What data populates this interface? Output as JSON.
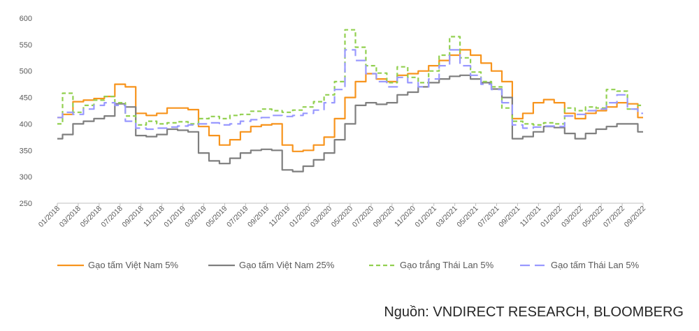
{
  "source_text": "Nguồn: VNDIRECT RESEARCH, BLOOMBERG",
  "chart_data": {
    "type": "line",
    "title": "",
    "xlabel": "",
    "ylabel": "",
    "ylim": [
      250,
      600
    ],
    "yticks": [
      250,
      300,
      350,
      400,
      450,
      500,
      550,
      600
    ],
    "grid": false,
    "legend_position": "bottom",
    "x_range": [
      "2018-01",
      "2022-09"
    ],
    "x_tick_labels": [
      "01/2018",
      "03/2018",
      "05/2018",
      "07/2018",
      "09/2018",
      "11/2018",
      "01/2019",
      "03/2019",
      "05/2019",
      "07/2019",
      "09/2019",
      "11/2019",
      "01/2020",
      "03/2020",
      "05/2020",
      "07/2020",
      "09/2020",
      "11/2020",
      "01/2021",
      "03/2021",
      "05/2021",
      "07/2021",
      "09/2021",
      "11/2021",
      "01/2022",
      "03/2022",
      "05/2022",
      "07/2022",
      "09/2022"
    ],
    "series": [
      {
        "name": "Gạo tấm Việt Nam 5%",
        "color": "#F7941D",
        "dash": "solid",
        "points": [
          [
            "2018-01",
            412
          ],
          [
            "2018-02",
            418
          ],
          [
            "2018-03",
            442
          ],
          [
            "2018-04",
            445
          ],
          [
            "2018-05",
            448
          ],
          [
            "2018-06",
            452
          ],
          [
            "2018-07",
            475
          ],
          [
            "2018-08",
            470
          ],
          [
            "2018-09",
            420
          ],
          [
            "2018-10",
            416
          ],
          [
            "2018-11",
            420
          ],
          [
            "2018-12",
            430
          ],
          [
            "2019-01",
            430
          ],
          [
            "2019-02",
            427
          ],
          [
            "2019-03",
            395
          ],
          [
            "2019-04",
            378
          ],
          [
            "2019-05",
            360
          ],
          [
            "2019-06",
            370
          ],
          [
            "2019-07",
            385
          ],
          [
            "2019-08",
            395
          ],
          [
            "2019-09",
            398
          ],
          [
            "2019-10",
            400
          ],
          [
            "2019-11",
            360
          ],
          [
            "2019-12",
            348
          ],
          [
            "2020-01",
            350
          ],
          [
            "2020-02",
            360
          ],
          [
            "2020-03",
            375
          ],
          [
            "2020-04",
            410
          ],
          [
            "2020-05",
            450
          ],
          [
            "2020-06",
            480
          ],
          [
            "2020-07",
            495
          ],
          [
            "2020-08",
            485
          ],
          [
            "2020-09",
            480
          ],
          [
            "2020-10",
            492
          ],
          [
            "2020-11",
            495
          ],
          [
            "2020-12",
            500
          ],
          [
            "2021-01",
            510
          ],
          [
            "2021-02",
            520
          ],
          [
            "2021-03",
            530
          ],
          [
            "2021-04",
            540
          ],
          [
            "2021-05",
            530
          ],
          [
            "2021-06",
            515
          ],
          [
            "2021-07",
            500
          ],
          [
            "2021-08",
            480
          ],
          [
            "2021-09",
            410
          ],
          [
            "2021-10",
            420
          ],
          [
            "2021-11",
            440
          ],
          [
            "2021-12",
            446
          ],
          [
            "2022-01",
            440
          ],
          [
            "2022-02",
            420
          ],
          [
            "2022-03",
            410
          ],
          [
            "2022-04",
            420
          ],
          [
            "2022-05",
            425
          ],
          [
            "2022-06",
            432
          ],
          [
            "2022-07",
            440
          ],
          [
            "2022-08",
            438
          ],
          [
            "2022-09",
            412
          ]
        ]
      },
      {
        "name": "Gạo tấm Việt Nam 25%",
        "color": "#7F7F7F",
        "dash": "solid",
        "points": [
          [
            "2018-01",
            372
          ],
          [
            "2018-02",
            380
          ],
          [
            "2018-03",
            400
          ],
          [
            "2018-04",
            405
          ],
          [
            "2018-05",
            410
          ],
          [
            "2018-06",
            415
          ],
          [
            "2018-07",
            438
          ],
          [
            "2018-08",
            432
          ],
          [
            "2018-09",
            378
          ],
          [
            "2018-10",
            376
          ],
          [
            "2018-11",
            380
          ],
          [
            "2018-12",
            390
          ],
          [
            "2019-01",
            388
          ],
          [
            "2019-02",
            385
          ],
          [
            "2019-03",
            345
          ],
          [
            "2019-04",
            330
          ],
          [
            "2019-05",
            325
          ],
          [
            "2019-06",
            335
          ],
          [
            "2019-07",
            345
          ],
          [
            "2019-08",
            350
          ],
          [
            "2019-09",
            352
          ],
          [
            "2019-10",
            350
          ],
          [
            "2019-11",
            313
          ],
          [
            "2019-12",
            310
          ],
          [
            "2020-01",
            320
          ],
          [
            "2020-02",
            332
          ],
          [
            "2020-03",
            345
          ],
          [
            "2020-04",
            370
          ],
          [
            "2020-05",
            400
          ],
          [
            "2020-06",
            435
          ],
          [
            "2020-07",
            440
          ],
          [
            "2020-08",
            437
          ],
          [
            "2020-09",
            440
          ],
          [
            "2020-10",
            455
          ],
          [
            "2020-11",
            460
          ],
          [
            "2020-12",
            470
          ],
          [
            "2021-01",
            478
          ],
          [
            "2021-02",
            485
          ],
          [
            "2021-03",
            490
          ],
          [
            "2021-04",
            492
          ],
          [
            "2021-05",
            485
          ],
          [
            "2021-06",
            478
          ],
          [
            "2021-07",
            466
          ],
          [
            "2021-08",
            450
          ],
          [
            "2021-09",
            372
          ],
          [
            "2021-10",
            376
          ],
          [
            "2021-11",
            385
          ],
          [
            "2021-12",
            395
          ],
          [
            "2022-01",
            393
          ],
          [
            "2022-02",
            382
          ],
          [
            "2022-03",
            372
          ],
          [
            "2022-04",
            382
          ],
          [
            "2022-05",
            390
          ],
          [
            "2022-06",
            395
          ],
          [
            "2022-07",
            400
          ],
          [
            "2022-08",
            400
          ],
          [
            "2022-09",
            385
          ]
        ]
      },
      {
        "name": "Gạo trắng Thái Lan 5%",
        "color": "#92D050",
        "dash": "6,4",
        "points": [
          [
            "2018-01",
            400
          ],
          [
            "2018-02",
            458
          ],
          [
            "2018-03",
            422
          ],
          [
            "2018-04",
            435
          ],
          [
            "2018-05",
            445
          ],
          [
            "2018-06",
            452
          ],
          [
            "2018-07",
            440
          ],
          [
            "2018-08",
            415
          ],
          [
            "2018-09",
            398
          ],
          [
            "2018-10",
            405
          ],
          [
            "2018-11",
            400
          ],
          [
            "2018-12",
            402
          ],
          [
            "2019-01",
            404
          ],
          [
            "2019-02",
            400
          ],
          [
            "2019-03",
            410
          ],
          [
            "2019-04",
            414
          ],
          [
            "2019-05",
            410
          ],
          [
            "2019-06",
            416
          ],
          [
            "2019-07",
            418
          ],
          [
            "2019-08",
            424
          ],
          [
            "2019-09",
            428
          ],
          [
            "2019-10",
            425
          ],
          [
            "2019-11",
            422
          ],
          [
            "2019-12",
            426
          ],
          [
            "2020-01",
            432
          ],
          [
            "2020-02",
            442
          ],
          [
            "2020-03",
            455
          ],
          [
            "2020-04",
            480
          ],
          [
            "2020-05",
            578
          ],
          [
            "2020-06",
            545
          ],
          [
            "2020-07",
            510
          ],
          [
            "2020-08",
            496
          ],
          [
            "2020-09",
            478
          ],
          [
            "2020-10",
            508
          ],
          [
            "2020-11",
            488
          ],
          [
            "2020-12",
            478
          ],
          [
            "2021-01",
            500
          ],
          [
            "2021-02",
            530
          ],
          [
            "2021-03",
            565
          ],
          [
            "2021-04",
            525
          ],
          [
            "2021-05",
            498
          ],
          [
            "2021-06",
            480
          ],
          [
            "2021-07",
            470
          ],
          [
            "2021-08",
            430
          ],
          [
            "2021-09",
            405
          ],
          [
            "2021-10",
            400
          ],
          [
            "2021-11",
            398
          ],
          [
            "2021-12",
            402
          ],
          [
            "2022-01",
            400
          ],
          [
            "2022-02",
            430
          ],
          [
            "2022-03",
            425
          ],
          [
            "2022-04",
            432
          ],
          [
            "2022-05",
            430
          ],
          [
            "2022-06",
            465
          ],
          [
            "2022-07",
            462
          ],
          [
            "2022-08",
            428
          ],
          [
            "2022-09",
            435
          ]
        ]
      },
      {
        "name": "Gạo tấm Thái Lan 5%",
        "color": "#9999FF",
        "dash": "14,7",
        "points": [
          [
            "2018-01",
            412
          ],
          [
            "2018-02",
            422
          ],
          [
            "2018-03",
            418
          ],
          [
            "2018-04",
            428
          ],
          [
            "2018-05",
            435
          ],
          [
            "2018-06",
            440
          ],
          [
            "2018-07",
            435
          ],
          [
            "2018-08",
            405
          ],
          [
            "2018-09",
            392
          ],
          [
            "2018-10",
            390
          ],
          [
            "2018-11",
            392
          ],
          [
            "2018-12",
            394
          ],
          [
            "2019-01",
            396
          ],
          [
            "2019-02",
            398
          ],
          [
            "2019-03",
            400
          ],
          [
            "2019-04",
            402
          ],
          [
            "2019-05",
            398
          ],
          [
            "2019-06",
            400
          ],
          [
            "2019-07",
            405
          ],
          [
            "2019-08",
            408
          ],
          [
            "2019-09",
            412
          ],
          [
            "2019-10",
            416
          ],
          [
            "2019-11",
            414
          ],
          [
            "2019-12",
            416
          ],
          [
            "2020-01",
            420
          ],
          [
            "2020-02",
            426
          ],
          [
            "2020-03",
            440
          ],
          [
            "2020-04",
            465
          ],
          [
            "2020-05",
            540
          ],
          [
            "2020-06",
            520
          ],
          [
            "2020-07",
            495
          ],
          [
            "2020-08",
            480
          ],
          [
            "2020-09",
            470
          ],
          [
            "2020-10",
            488
          ],
          [
            "2020-11",
            478
          ],
          [
            "2020-12",
            470
          ],
          [
            "2021-01",
            485
          ],
          [
            "2021-02",
            510
          ],
          [
            "2021-03",
            540
          ],
          [
            "2021-04",
            510
          ],
          [
            "2021-05",
            492
          ],
          [
            "2021-06",
            475
          ],
          [
            "2021-07",
            465
          ],
          [
            "2021-08",
            440
          ],
          [
            "2021-09",
            398
          ],
          [
            "2021-10",
            392
          ],
          [
            "2021-11",
            394
          ],
          [
            "2021-12",
            396
          ],
          [
            "2022-01",
            395
          ],
          [
            "2022-02",
            415
          ],
          [
            "2022-03",
            418
          ],
          [
            "2022-04",
            425
          ],
          [
            "2022-05",
            428
          ],
          [
            "2022-06",
            440
          ],
          [
            "2022-07",
            455
          ],
          [
            "2022-08",
            428
          ],
          [
            "2022-09",
            420
          ]
        ]
      }
    ]
  }
}
